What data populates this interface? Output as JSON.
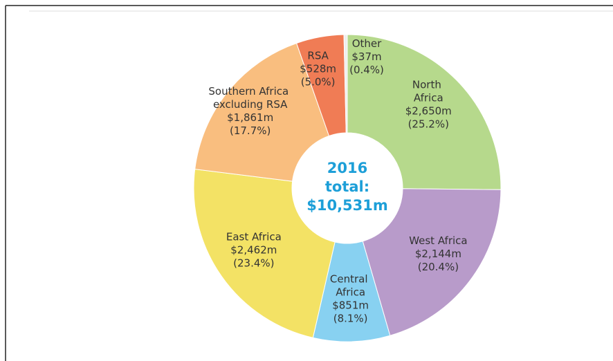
{
  "chart_data": {
    "type": "donut",
    "categories": [
      "North Africa",
      "West Africa",
      "Central Africa",
      "East Africa",
      "Southern Africa excluding RSA",
      "RSA",
      "Other"
    ],
    "values": [
      2650,
      2144,
      851,
      2462,
      1861,
      528,
      37
    ],
    "value_labels": [
      "$2,650m",
      "$2,144m",
      "$851m",
      "$2,462m",
      "$1,861m",
      "$528m",
      "$37m"
    ],
    "percents": [
      25.2,
      20.4,
      8.1,
      23.4,
      17.7,
      5.0,
      0.4
    ],
    "percent_labels": [
      "(25.2%)",
      "(20.4%)",
      "(8.1%)",
      "(23.4%)",
      "(17.7%)",
      "(5.0%)",
      "(0.4%)"
    ],
    "colors": [
      "#b6d98c",
      "#b89bca",
      "#88d1f1",
      "#f3e265",
      "#f9be7f",
      "#f07c55",
      "#eeeeee"
    ],
    "center_label": [
      "2016",
      "total:",
      "$10,531m"
    ]
  }
}
